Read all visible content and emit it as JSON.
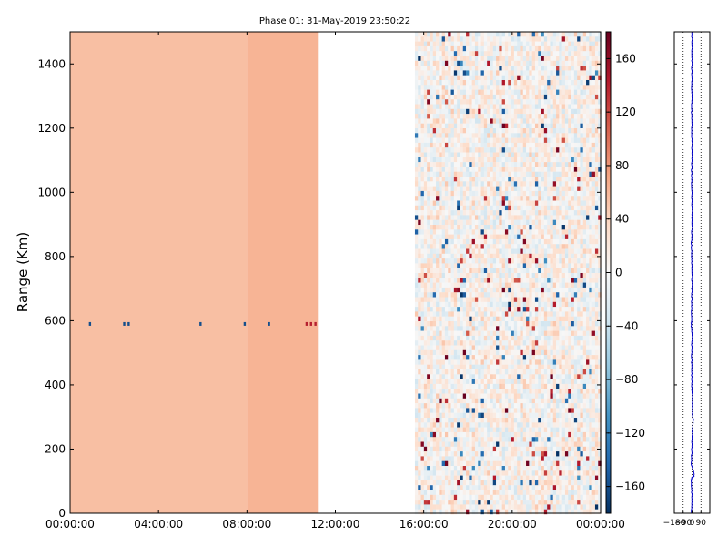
{
  "chart_data": [
    {
      "type": "heatmap",
      "title": "Phase 01: 31-May-2019 23:50:22",
      "xlabel": "",
      "ylabel": "Range (Km)",
      "x_axis": {
        "kind": "time",
        "range": [
          "00:00:00",
          "24:00:00"
        ],
        "tick_labels": [
          "00:00:00",
          "04:00:00",
          "08:00:00",
          "12:00:00",
          "16:00:00",
          "20:00:00",
          "00:00:00"
        ],
        "tick_values_hours": [
          0,
          4,
          8,
          12,
          16,
          20,
          24
        ]
      },
      "y_axis": {
        "range": [
          0,
          1500
        ],
        "ticks": [
          0,
          200,
          400,
          600,
          800,
          1000,
          1200,
          1400
        ],
        "tick_labels": [
          "0",
          "200",
          "400",
          "600",
          "800",
          "1000",
          "1200",
          "1400"
        ]
      },
      "colormap": "RdBu_r",
      "colorbar": {
        "range": [
          -180,
          180
        ],
        "ticks": [
          -160,
          -120,
          -80,
          -40,
          0,
          40,
          80,
          120,
          160
        ],
        "tick_labels": [
          "−160",
          "−120",
          "−80",
          "−40",
          "0",
          "40",
          "80",
          "120",
          "160"
        ]
      },
      "grid": false,
      "segments": [
        {
          "start_hour": 0.0,
          "end_hour": 8.0,
          "value": 55,
          "description_value_units": "phase"
        },
        {
          "start_hour": 8.0,
          "end_hour": 11.25,
          "value": 62
        },
        {
          "start_hour": 11.25,
          "end_hour": 15.6,
          "value": null
        },
        {
          "start_hour": 15.6,
          "end_hour": 24.0,
          "value_mean": 0,
          "value_spread": 180,
          "pattern": "noise"
        }
      ],
      "noted_features": [
        {
          "range_km": 590,
          "hours": [
            0.9,
            2.45,
            2.65,
            5.9,
            7.9,
            9.0
          ],
          "value": -160
        },
        {
          "range_km": 590,
          "hours": [
            10.7,
            10.9,
            11.1
          ],
          "value": 140
        }
      ]
    },
    {
      "type": "line",
      "title": "",
      "xlabel": "",
      "ylabel": "",
      "x_axis": {
        "range": [
          -180,
          180
        ],
        "ticks": [
          -180,
          -90,
          0,
          90
        ],
        "tick_labels": [
          "−180",
          "−90",
          "0",
          "90"
        ],
        "dotted_gridlines_at": [
          -90,
          0,
          90
        ]
      },
      "y_axis": {
        "range": [
          0,
          1500
        ],
        "ticks": [
          0,
          200,
          400,
          600,
          800,
          1000,
          1200,
          1400
        ],
        "tick_labels_shown": false
      },
      "color": "#0000cc",
      "series": [
        {
          "y": [
            0,
            50,
            100,
            110,
            115,
            130,
            150,
            200,
            250,
            290,
            310,
            350,
            400,
            450,
            500,
            550,
            590,
            600,
            650,
            700,
            750,
            800,
            850,
            900,
            950,
            1000,
            1050,
            1100,
            1150,
            1200,
            1250,
            1300,
            1350,
            1400,
            1450,
            1500
          ],
          "x": [
            -5,
            -3,
            -6,
            -4,
            20,
            18,
            -8,
            -2,
            2,
            12,
            5,
            3,
            -2,
            -4,
            -3,
            -1,
            -8,
            -5,
            -3,
            -2,
            1,
            -4,
            -6,
            2,
            -1,
            -3,
            -4,
            -2,
            0,
            -3,
            -4,
            -1,
            -2,
            -1,
            1,
            -2
          ]
        }
      ]
    }
  ]
}
